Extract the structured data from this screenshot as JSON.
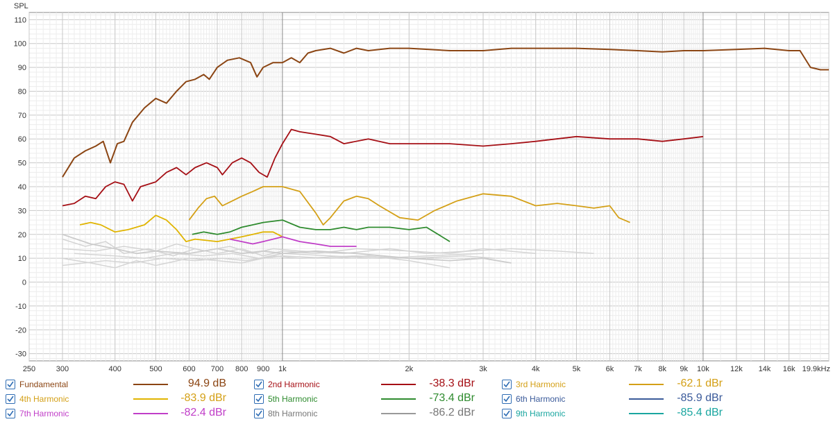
{
  "chart_data": {
    "type": "line",
    "ylabel": "SPL",
    "xunit": "Hz",
    "xscale": "log",
    "xlim": [
      250,
      19900
    ],
    "ylim": [
      -33,
      113
    ],
    "yticks": [
      110,
      100,
      90,
      80,
      70,
      60,
      50,
      40,
      30,
      20,
      10,
      0,
      -10,
      -20,
      -30
    ],
    "xticks": [
      {
        "value": 250,
        "label": "250"
      },
      {
        "value": 300,
        "label": "300"
      },
      {
        "value": 400,
        "label": "400"
      },
      {
        "value": 500,
        "label": "500"
      },
      {
        "value": 600,
        "label": "600"
      },
      {
        "value": 700,
        "label": "700"
      },
      {
        "value": 800,
        "label": "800"
      },
      {
        "value": 900,
        "label": "900"
      },
      {
        "value": 1000,
        "label": "1k"
      },
      {
        "value": 2000,
        "label": "2k"
      },
      {
        "value": 3000,
        "label": "3k"
      },
      {
        "value": 4000,
        "label": "4k"
      },
      {
        "value": 5000,
        "label": "5k"
      },
      {
        "value": 6000,
        "label": "6k"
      },
      {
        "value": 7000,
        "label": "7k"
      },
      {
        "value": 8000,
        "label": "8k"
      },
      {
        "value": 9000,
        "label": "9k"
      },
      {
        "value": 10000,
        "label": "10k"
      },
      {
        "value": 12000,
        "label": "12k"
      },
      {
        "value": 14000,
        "label": "14k"
      },
      {
        "value": 16000,
        "label": "16k"
      },
      {
        "value": 19900,
        "label": "19.9kHz"
      }
    ],
    "series": [
      {
        "name": "Fundamental",
        "color": "#8b4513",
        "points": [
          [
            300,
            44
          ],
          [
            320,
            52
          ],
          [
            340,
            55
          ],
          [
            360,
            57
          ],
          [
            375,
            59
          ],
          [
            390,
            50
          ],
          [
            405,
            58
          ],
          [
            420,
            59
          ],
          [
            440,
            67
          ],
          [
            470,
            73
          ],
          [
            500,
            77
          ],
          [
            530,
            75
          ],
          [
            560,
            80
          ],
          [
            590,
            84
          ],
          [
            620,
            85
          ],
          [
            650,
            87
          ],
          [
            670,
            85
          ],
          [
            700,
            90
          ],
          [
            740,
            93
          ],
          [
            790,
            94
          ],
          [
            840,
            92
          ],
          [
            870,
            86
          ],
          [
            900,
            90
          ],
          [
            950,
            92
          ],
          [
            1000,
            92
          ],
          [
            1050,
            94
          ],
          [
            1100,
            92
          ],
          [
            1150,
            96
          ],
          [
            1200,
            97
          ],
          [
            1300,
            98
          ],
          [
            1400,
            96
          ],
          [
            1500,
            98
          ],
          [
            1600,
            97
          ],
          [
            1800,
            98
          ],
          [
            2000,
            98
          ],
          [
            2500,
            97
          ],
          [
            3000,
            97
          ],
          [
            3500,
            98
          ],
          [
            4000,
            98
          ],
          [
            5000,
            98
          ],
          [
            6000,
            97.5
          ],
          [
            7000,
            97
          ],
          [
            8000,
            96.5
          ],
          [
            9000,
            97
          ],
          [
            10000,
            97
          ],
          [
            12000,
            97.5
          ],
          [
            14000,
            98
          ],
          [
            16000,
            97
          ],
          [
            17000,
            97
          ],
          [
            18000,
            90
          ],
          [
            19000,
            89
          ],
          [
            19900,
            89
          ]
        ]
      },
      {
        "name": "2nd Harmonic",
        "color": "#a50f15",
        "points": [
          [
            300,
            32
          ],
          [
            320,
            33
          ],
          [
            340,
            36
          ],
          [
            360,
            35
          ],
          [
            380,
            40
          ],
          [
            400,
            42
          ],
          [
            420,
            41
          ],
          [
            440,
            34
          ],
          [
            460,
            40
          ],
          [
            500,
            42
          ],
          [
            530,
            46
          ],
          [
            560,
            48
          ],
          [
            590,
            45
          ],
          [
            620,
            48
          ],
          [
            660,
            50
          ],
          [
            700,
            48
          ],
          [
            720,
            45
          ],
          [
            760,
            50
          ],
          [
            800,
            52
          ],
          [
            840,
            50
          ],
          [
            880,
            46
          ],
          [
            920,
            44
          ],
          [
            960,
            52
          ],
          [
            1000,
            58
          ],
          [
            1050,
            64
          ],
          [
            1100,
            63
          ],
          [
            1200,
            62
          ],
          [
            1300,
            61
          ],
          [
            1400,
            58
          ],
          [
            1600,
            60
          ],
          [
            1800,
            58
          ],
          [
            2000,
            58
          ],
          [
            2500,
            58
          ],
          [
            3000,
            57
          ],
          [
            3500,
            58
          ],
          [
            4000,
            59
          ],
          [
            5000,
            61
          ],
          [
            6000,
            60
          ],
          [
            7000,
            60
          ],
          [
            8000,
            59
          ],
          [
            9000,
            60
          ],
          [
            10000,
            61
          ]
        ]
      },
      {
        "name": "3rd Harmonic",
        "color": "#d4a017",
        "points": [
          [
            600,
            26
          ],
          [
            630,
            31
          ],
          [
            660,
            35
          ],
          [
            690,
            36
          ],
          [
            720,
            32
          ],
          [
            760,
            34
          ],
          [
            800,
            36
          ],
          [
            850,
            38
          ],
          [
            900,
            40
          ],
          [
            950,
            40
          ],
          [
            1000,
            40
          ],
          [
            1100,
            38
          ],
          [
            1200,
            29
          ],
          [
            1250,
            24
          ],
          [
            1300,
            27
          ],
          [
            1400,
            34
          ],
          [
            1500,
            36
          ],
          [
            1600,
            35
          ],
          [
            1700,
            32
          ],
          [
            1900,
            27
          ],
          [
            2100,
            26
          ],
          [
            2300,
            30
          ],
          [
            2600,
            34
          ],
          [
            3000,
            37
          ],
          [
            3500,
            36
          ],
          [
            4000,
            32
          ],
          [
            4500,
            33
          ],
          [
            5000,
            32
          ],
          [
            5500,
            31
          ],
          [
            6000,
            32
          ],
          [
            6300,
            27
          ],
          [
            6700,
            25
          ]
        ]
      },
      {
        "name": "4th Harmonic",
        "color": "#e0b400",
        "points": [
          [
            330,
            24
          ],
          [
            350,
            25
          ],
          [
            370,
            24
          ],
          [
            400,
            21
          ],
          [
            430,
            22
          ],
          [
            470,
            24
          ],
          [
            500,
            28
          ],
          [
            530,
            26
          ],
          [
            560,
            22
          ],
          [
            590,
            17
          ],
          [
            620,
            18
          ],
          [
            700,
            17
          ],
          [
            800,
            19
          ],
          [
            850,
            20
          ],
          [
            900,
            21
          ],
          [
            950,
            21
          ],
          [
            1000,
            19
          ]
        ]
      },
      {
        "name": "5th Harmonic",
        "color": "#2e8b2e",
        "points": [
          [
            610,
            20
          ],
          [
            650,
            21
          ],
          [
            700,
            20
          ],
          [
            750,
            21
          ],
          [
            800,
            23
          ],
          [
            850,
            24
          ],
          [
            900,
            25
          ],
          [
            1000,
            26
          ],
          [
            1100,
            23
          ],
          [
            1200,
            22
          ],
          [
            1300,
            22
          ],
          [
            1400,
            23
          ],
          [
            1500,
            22
          ],
          [
            1600,
            23
          ],
          [
            1800,
            23
          ],
          [
            2000,
            22
          ],
          [
            2200,
            23
          ],
          [
            2500,
            17
          ]
        ]
      },
      {
        "name": "6th Harmonic",
        "color": "#3a5a9a",
        "points": []
      },
      {
        "name": "7th Harmonic",
        "color": "#c03ec8",
        "points": [
          [
            750,
            18
          ],
          [
            800,
            17
          ],
          [
            850,
            16
          ],
          [
            900,
            17
          ],
          [
            950,
            18
          ],
          [
            1000,
            19
          ],
          [
            1100,
            17
          ],
          [
            1200,
            16
          ],
          [
            1300,
            15
          ],
          [
            1500,
            15
          ]
        ]
      },
      {
        "name": "8th Harmonic",
        "color": "#cccccc",
        "points": [
          [
            300,
            20
          ],
          [
            350,
            16
          ],
          [
            400,
            14
          ],
          [
            450,
            12
          ],
          [
            500,
            13
          ],
          [
            600,
            12
          ],
          [
            700,
            14
          ],
          [
            800,
            12
          ],
          [
            900,
            13
          ],
          [
            1000,
            12
          ],
          [
            1200,
            13
          ],
          [
            1500,
            12
          ],
          [
            2000,
            10
          ],
          [
            2500,
            9
          ],
          [
            3000,
            10
          ],
          [
            3500,
            8
          ]
        ]
      },
      {
        "name": "9th Harmonic",
        "color": "#1aa6a0",
        "points": []
      }
    ],
    "background_traces": [
      [
        [
          300,
          18
        ],
        [
          340,
          15
        ],
        [
          380,
          17
        ],
        [
          420,
          12
        ],
        [
          480,
          14
        ],
        [
          550,
          11
        ],
        [
          620,
          14
        ],
        [
          700,
          12
        ],
        [
          800,
          14
        ],
        [
          900,
          11
        ],
        [
          1000,
          13
        ],
        [
          1200,
          12
        ],
        [
          1500,
          14
        ],
        [
          2000,
          13
        ],
        [
          2500,
          12
        ],
        [
          3000,
          14
        ],
        [
          4000,
          12
        ]
      ],
      [
        [
          300,
          10
        ],
        [
          350,
          8
        ],
        [
          400,
          6
        ],
        [
          450,
          9
        ],
        [
          500,
          7
        ],
        [
          600,
          10
        ],
        [
          700,
          9
        ],
        [
          800,
          8
        ],
        [
          900,
          10
        ],
        [
          1000,
          11
        ],
        [
          1300,
          10
        ],
        [
          1600,
          11
        ],
        [
          2000,
          9
        ],
        [
          2500,
          6
        ]
      ],
      [
        [
          300,
          14
        ],
        [
          360,
          13
        ],
        [
          420,
          15
        ],
        [
          500,
          13
        ],
        [
          560,
          16
        ],
        [
          650,
          13
        ],
        [
          750,
          15
        ],
        [
          850,
          12
        ],
        [
          950,
          14
        ],
        [
          1100,
          13
        ],
        [
          1400,
          12
        ],
        [
          1800,
          14
        ],
        [
          2200,
          12
        ],
        [
          2800,
          13
        ],
        [
          3500,
          14
        ],
        [
          4500,
          13
        ],
        [
          5500,
          12
        ]
      ],
      [
        [
          300,
          7
        ],
        [
          380,
          9
        ],
        [
          440,
          8
        ],
        [
          520,
          10
        ],
        [
          620,
          9
        ],
        [
          720,
          10
        ],
        [
          820,
          9
        ],
        [
          950,
          11
        ],
        [
          1100,
          10
        ],
        [
          1500,
          11
        ],
        [
          2000,
          10
        ],
        [
          2700,
          11
        ],
        [
          3200,
          10
        ]
      ],
      [
        [
          320,
          12
        ],
        [
          400,
          11
        ],
        [
          470,
          10
        ],
        [
          550,
          12
        ],
        [
          650,
          11
        ],
        [
          760,
          12
        ],
        [
          880,
          10
        ],
        [
          1000,
          12
        ],
        [
          1300,
          11
        ],
        [
          1700,
          10
        ],
        [
          2200,
          11
        ],
        [
          3000,
          12
        ]
      ]
    ]
  },
  "legend": {
    "entries": [
      {
        "name": "Fundamental",
        "value": "94.9 dB",
        "color": "#8b4513",
        "label_color": "#8b4513",
        "checked": true
      },
      {
        "name": "2nd Harmonic",
        "value": "-38.3 dBr",
        "color": "#a50f15",
        "label_color": "#a50f15",
        "checked": true
      },
      {
        "name": "3rd Harmonic",
        "value": "-62.1 dBr",
        "color": "#d4a017",
        "label_color": "#d4a017",
        "checked": true
      },
      {
        "name": "4th Harmonic",
        "value": "-83.9 dBr",
        "color": "#e0b400",
        "label_color": "#d4a017",
        "checked": true
      },
      {
        "name": "5th Harmonic",
        "value": "-73.4 dBr",
        "color": "#2e8b2e",
        "label_color": "#2e8b2e",
        "checked": true
      },
      {
        "name": "6th Harmonic",
        "value": "-85.9 dBr",
        "color": "#3a5a9a",
        "label_color": "#3a5a9a",
        "checked": true
      },
      {
        "name": "7th Harmonic",
        "value": "-82.4 dBr",
        "color": "#c03ec8",
        "label_color": "#c03ec8",
        "checked": true
      },
      {
        "name": "8th Harmonic",
        "value": "-86.2 dBr",
        "color": "#999999",
        "label_color": "#777777",
        "checked": true
      },
      {
        "name": "9th Harmonic",
        "value": "-85.4 dBr",
        "color": "#1aa6a0",
        "label_color": "#1aa6a0",
        "checked": true
      }
    ]
  }
}
